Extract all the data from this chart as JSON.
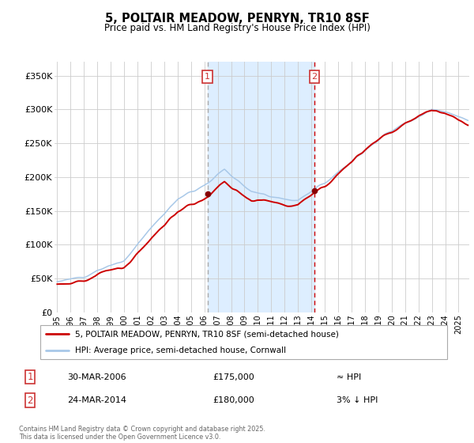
{
  "title": "5, POLTAIR MEADOW, PENRYN, TR10 8SF",
  "subtitle": "Price paid vs. HM Land Registry's House Price Index (HPI)",
  "legend_line1": "5, POLTAIR MEADOW, PENRYN, TR10 8SF (semi-detached house)",
  "legend_line2": "HPI: Average price, semi-detached house, Cornwall",
  "marker1_date": "30-MAR-2006",
  "marker1_price": 175000,
  "marker1_label": "≈ HPI",
  "marker1_year": 2006.23,
  "marker2_date": "24-MAR-2014",
  "marker2_price": 180000,
  "marker2_label": "3% ↓ HPI",
  "marker2_year": 2014.23,
  "note": "Contains HM Land Registry data © Crown copyright and database right 2025.\nThis data is licensed under the Open Government Licence v3.0.",
  "ylabel_ticks": [
    "£0",
    "£50K",
    "£100K",
    "£150K",
    "£200K",
    "£250K",
    "£300K",
    "£350K"
  ],
  "ylabel_values": [
    0,
    50000,
    100000,
    150000,
    200000,
    250000,
    300000,
    350000
  ],
  "ylim": [
    0,
    370000
  ],
  "xlim_start": 1994.8,
  "xlim_end": 2025.8,
  "background_color": "#ffffff",
  "plot_bg_color": "#ffffff",
  "grid_color": "#cccccc",
  "red_line_color": "#cc0000",
  "blue_line_color": "#a8c8e8",
  "shade_color": "#ddeeff",
  "marker_dot_color": "#880000",
  "vline1_color": "#aaaaaa",
  "vline2_color": "#cc0000",
  "box_color": "#cc3333"
}
